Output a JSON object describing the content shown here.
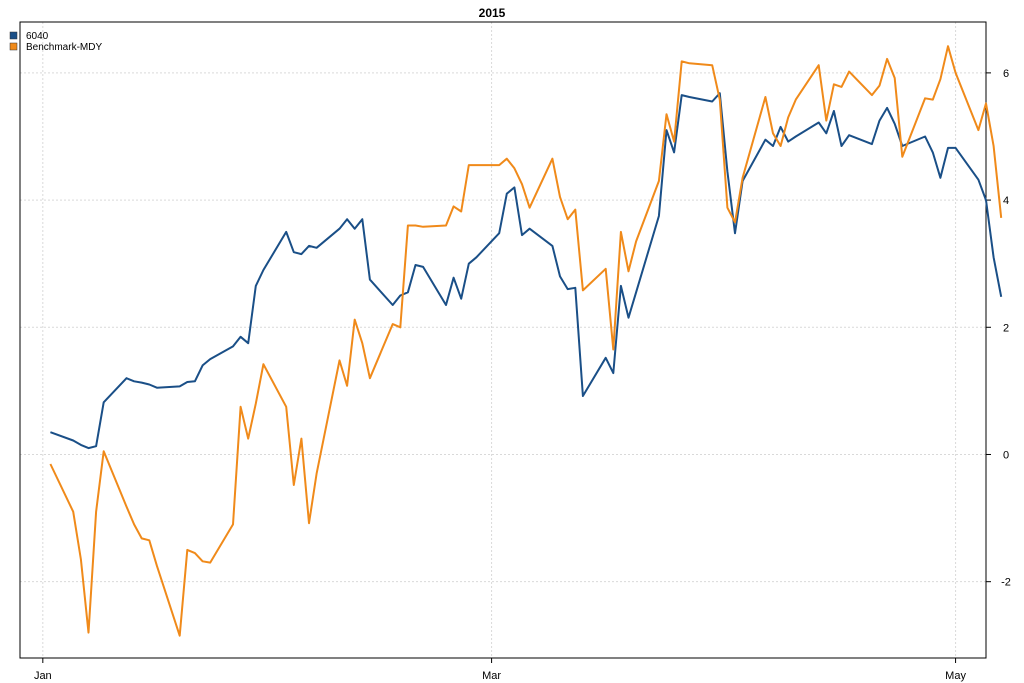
{
  "chart_data": {
    "type": "line",
    "title": "2015",
    "xlabel": "",
    "ylabel": "",
    "x_range": [
      "2014-12-29",
      "2015-05-05"
    ],
    "ylim": [
      -3.2,
      6.8
    ],
    "y_ticks": [
      -2,
      0,
      2,
      4,
      6
    ],
    "y_tick_labels": [
      "-2",
      "0",
      "2",
      "4",
      "6"
    ],
    "y_axis_side": "right",
    "x_ticks": [
      {
        "date": "2015-01-01",
        "label": "Jan"
      },
      {
        "date": "2015-03-01",
        "label": "Mar"
      },
      {
        "date": "2015-05-01",
        "label": "May"
      }
    ],
    "grid": true,
    "legend_position": "top-left",
    "series": [
      {
        "name": "6040",
        "color": "#1a4f87",
        "points": [
          [
            "2015-01-02",
            0.35
          ],
          [
            "2015-01-05",
            0.22
          ],
          [
            "2015-01-06",
            0.15
          ],
          [
            "2015-01-07",
            0.1
          ],
          [
            "2015-01-08",
            0.13
          ],
          [
            "2015-01-09",
            0.82
          ],
          [
            "2015-01-12",
            1.2
          ],
          [
            "2015-01-13",
            1.15
          ],
          [
            "2015-01-14",
            1.13
          ],
          [
            "2015-01-15",
            1.1
          ],
          [
            "2015-01-16",
            1.05
          ],
          [
            "2015-01-19",
            1.07
          ],
          [
            "2015-01-20",
            1.14
          ],
          [
            "2015-01-21",
            1.15
          ],
          [
            "2015-01-22",
            1.4
          ],
          [
            "2015-01-23",
            1.5
          ],
          [
            "2015-01-26",
            1.7
          ],
          [
            "2015-01-27",
            1.85
          ],
          [
            "2015-01-28",
            1.75
          ],
          [
            "2015-01-29",
            2.65
          ],
          [
            "2015-01-30",
            2.9
          ],
          [
            "2015-02-02",
            3.5
          ],
          [
            "2015-02-03",
            3.18
          ],
          [
            "2015-02-04",
            3.15
          ],
          [
            "2015-02-05",
            3.28
          ],
          [
            "2015-02-06",
            3.25
          ],
          [
            "2015-02-09",
            3.55
          ],
          [
            "2015-02-10",
            3.7
          ],
          [
            "2015-02-11",
            3.55
          ],
          [
            "2015-02-12",
            3.7
          ],
          [
            "2015-02-13",
            2.75
          ],
          [
            "2015-02-16",
            2.35
          ],
          [
            "2015-02-17",
            2.5
          ],
          [
            "2015-02-18",
            2.55
          ],
          [
            "2015-02-19",
            2.98
          ],
          [
            "2015-02-20",
            2.95
          ],
          [
            "2015-02-23",
            2.35
          ],
          [
            "2015-02-24",
            2.78
          ],
          [
            "2015-02-25",
            2.45
          ],
          [
            "2015-02-26",
            3.0
          ],
          [
            "2015-02-27",
            3.1
          ],
          [
            "2015-03-02",
            3.48
          ],
          [
            "2015-03-03",
            4.1
          ],
          [
            "2015-03-04",
            4.2
          ],
          [
            "2015-03-05",
            3.45
          ],
          [
            "2015-03-06",
            3.55
          ],
          [
            "2015-03-09",
            3.28
          ],
          [
            "2015-03-10",
            2.8
          ],
          [
            "2015-03-11",
            2.6
          ],
          [
            "2015-03-12",
            2.62
          ],
          [
            "2015-03-13",
            0.92
          ],
          [
            "2015-03-16",
            1.52
          ],
          [
            "2015-03-17",
            1.28
          ],
          [
            "2015-03-18",
            2.65
          ],
          [
            "2015-03-19",
            2.15
          ],
          [
            "2015-03-20",
            2.55
          ],
          [
            "2015-03-23",
            3.75
          ],
          [
            "2015-03-24",
            5.1
          ],
          [
            "2015-03-25",
            4.75
          ],
          [
            "2015-03-26",
            5.65
          ],
          [
            "2015-03-27",
            5.62
          ],
          [
            "2015-03-30",
            5.55
          ],
          [
            "2015-03-31",
            5.68
          ],
          [
            "2015-04-01",
            4.45
          ],
          [
            "2015-04-02",
            3.48
          ],
          [
            "2015-04-03",
            4.3
          ],
          [
            "2015-04-06",
            4.95
          ],
          [
            "2015-04-07",
            4.85
          ],
          [
            "2015-04-08",
            5.15
          ],
          [
            "2015-04-09",
            4.92
          ],
          [
            "2015-04-10",
            5.0
          ],
          [
            "2015-04-13",
            5.22
          ],
          [
            "2015-04-14",
            5.05
          ],
          [
            "2015-04-15",
            5.4
          ],
          [
            "2015-04-16",
            4.85
          ],
          [
            "2015-04-17",
            5.02
          ],
          [
            "2015-04-20",
            4.88
          ],
          [
            "2015-04-21",
            5.25
          ],
          [
            "2015-04-22",
            5.45
          ],
          [
            "2015-04-23",
            5.2
          ],
          [
            "2015-04-24",
            4.85
          ],
          [
            "2015-04-27",
            5.0
          ],
          [
            "2015-04-28",
            4.75
          ],
          [
            "2015-04-29",
            4.35
          ],
          [
            "2015-04-30",
            4.82
          ],
          [
            "2015-05-01",
            4.82
          ],
          [
            "2015-05-04",
            4.32
          ],
          [
            "2015-05-05",
            4.0
          ],
          [
            "2015-05-06",
            3.1
          ],
          [
            "2015-05-07",
            2.48
          ]
        ]
      },
      {
        "name": "Benchmark-MDY",
        "color": "#f08a1a",
        "points": [
          [
            "2015-01-02",
            -0.15
          ],
          [
            "2015-01-05",
            -0.9
          ],
          [
            "2015-01-06",
            -1.65
          ],
          [
            "2015-01-07",
            -2.8
          ],
          [
            "2015-01-08",
            -0.9
          ],
          [
            "2015-01-09",
            0.05
          ],
          [
            "2015-01-12",
            -0.82
          ],
          [
            "2015-01-13",
            -1.1
          ],
          [
            "2015-01-14",
            -1.32
          ],
          [
            "2015-01-15",
            -1.35
          ],
          [
            "2015-01-16",
            -1.75
          ],
          [
            "2015-01-19",
            -2.85
          ],
          [
            "2015-01-20",
            -1.5
          ],
          [
            "2015-01-21",
            -1.55
          ],
          [
            "2015-01-22",
            -1.68
          ],
          [
            "2015-01-23",
            -1.7
          ],
          [
            "2015-01-26",
            -1.1
          ],
          [
            "2015-01-27",
            0.75
          ],
          [
            "2015-01-28",
            0.25
          ],
          [
            "2015-01-29",
            0.8
          ],
          [
            "2015-01-30",
            1.42
          ],
          [
            "2015-02-02",
            0.75
          ],
          [
            "2015-02-03",
            -0.48
          ],
          [
            "2015-02-04",
            0.25
          ],
          [
            "2015-02-05",
            -1.08
          ],
          [
            "2015-02-06",
            -0.3
          ],
          [
            "2015-02-09",
            1.48
          ],
          [
            "2015-02-10",
            1.08
          ],
          [
            "2015-02-11",
            2.12
          ],
          [
            "2015-02-12",
            1.75
          ],
          [
            "2015-02-13",
            1.2
          ],
          [
            "2015-02-16",
            2.05
          ],
          [
            "2015-02-17",
            2.0
          ],
          [
            "2015-02-18",
            3.6
          ],
          [
            "2015-02-19",
            3.6
          ],
          [
            "2015-02-20",
            3.58
          ],
          [
            "2015-02-23",
            3.6
          ],
          [
            "2015-02-24",
            3.9
          ],
          [
            "2015-02-25",
            3.82
          ],
          [
            "2015-02-26",
            4.55
          ],
          [
            "2015-02-27",
            4.55
          ],
          [
            "2015-03-02",
            4.55
          ],
          [
            "2015-03-03",
            4.65
          ],
          [
            "2015-03-04",
            4.5
          ],
          [
            "2015-03-05",
            4.25
          ],
          [
            "2015-03-06",
            3.88
          ],
          [
            "2015-03-09",
            4.65
          ],
          [
            "2015-03-10",
            4.05
          ],
          [
            "2015-03-11",
            3.7
          ],
          [
            "2015-03-12",
            3.85
          ],
          [
            "2015-03-13",
            2.58
          ],
          [
            "2015-03-16",
            2.92
          ],
          [
            "2015-03-17",
            1.65
          ],
          [
            "2015-03-18",
            3.5
          ],
          [
            "2015-03-19",
            2.88
          ],
          [
            "2015-03-20",
            3.35
          ],
          [
            "2015-03-23",
            4.3
          ],
          [
            "2015-03-24",
            5.35
          ],
          [
            "2015-03-25",
            4.92
          ],
          [
            "2015-03-26",
            6.18
          ],
          [
            "2015-03-27",
            6.15
          ],
          [
            "2015-03-30",
            6.12
          ],
          [
            "2015-03-31",
            5.58
          ],
          [
            "2015-04-01",
            3.88
          ],
          [
            "2015-04-02",
            3.65
          ],
          [
            "2015-04-03",
            4.35
          ],
          [
            "2015-04-06",
            5.62
          ],
          [
            "2015-04-07",
            5.05
          ],
          [
            "2015-04-08",
            4.85
          ],
          [
            "2015-04-09",
            5.3
          ],
          [
            "2015-04-10",
            5.58
          ],
          [
            "2015-04-13",
            6.12
          ],
          [
            "2015-04-14",
            5.25
          ],
          [
            "2015-04-15",
            5.82
          ],
          [
            "2015-04-16",
            5.78
          ],
          [
            "2015-04-17",
            6.02
          ],
          [
            "2015-04-20",
            5.65
          ],
          [
            "2015-04-21",
            5.8
          ],
          [
            "2015-04-22",
            6.22
          ],
          [
            "2015-04-23",
            5.92
          ],
          [
            "2015-04-24",
            4.68
          ],
          [
            "2015-04-27",
            5.6
          ],
          [
            "2015-04-28",
            5.58
          ],
          [
            "2015-04-29",
            5.9
          ],
          [
            "2015-04-30",
            6.42
          ],
          [
            "2015-05-01",
            6.0
          ],
          [
            "2015-05-04",
            5.1
          ],
          [
            "2015-05-05",
            5.52
          ],
          [
            "2015-05-06",
            4.85
          ],
          [
            "2015-05-07",
            3.72
          ]
        ]
      }
    ]
  }
}
